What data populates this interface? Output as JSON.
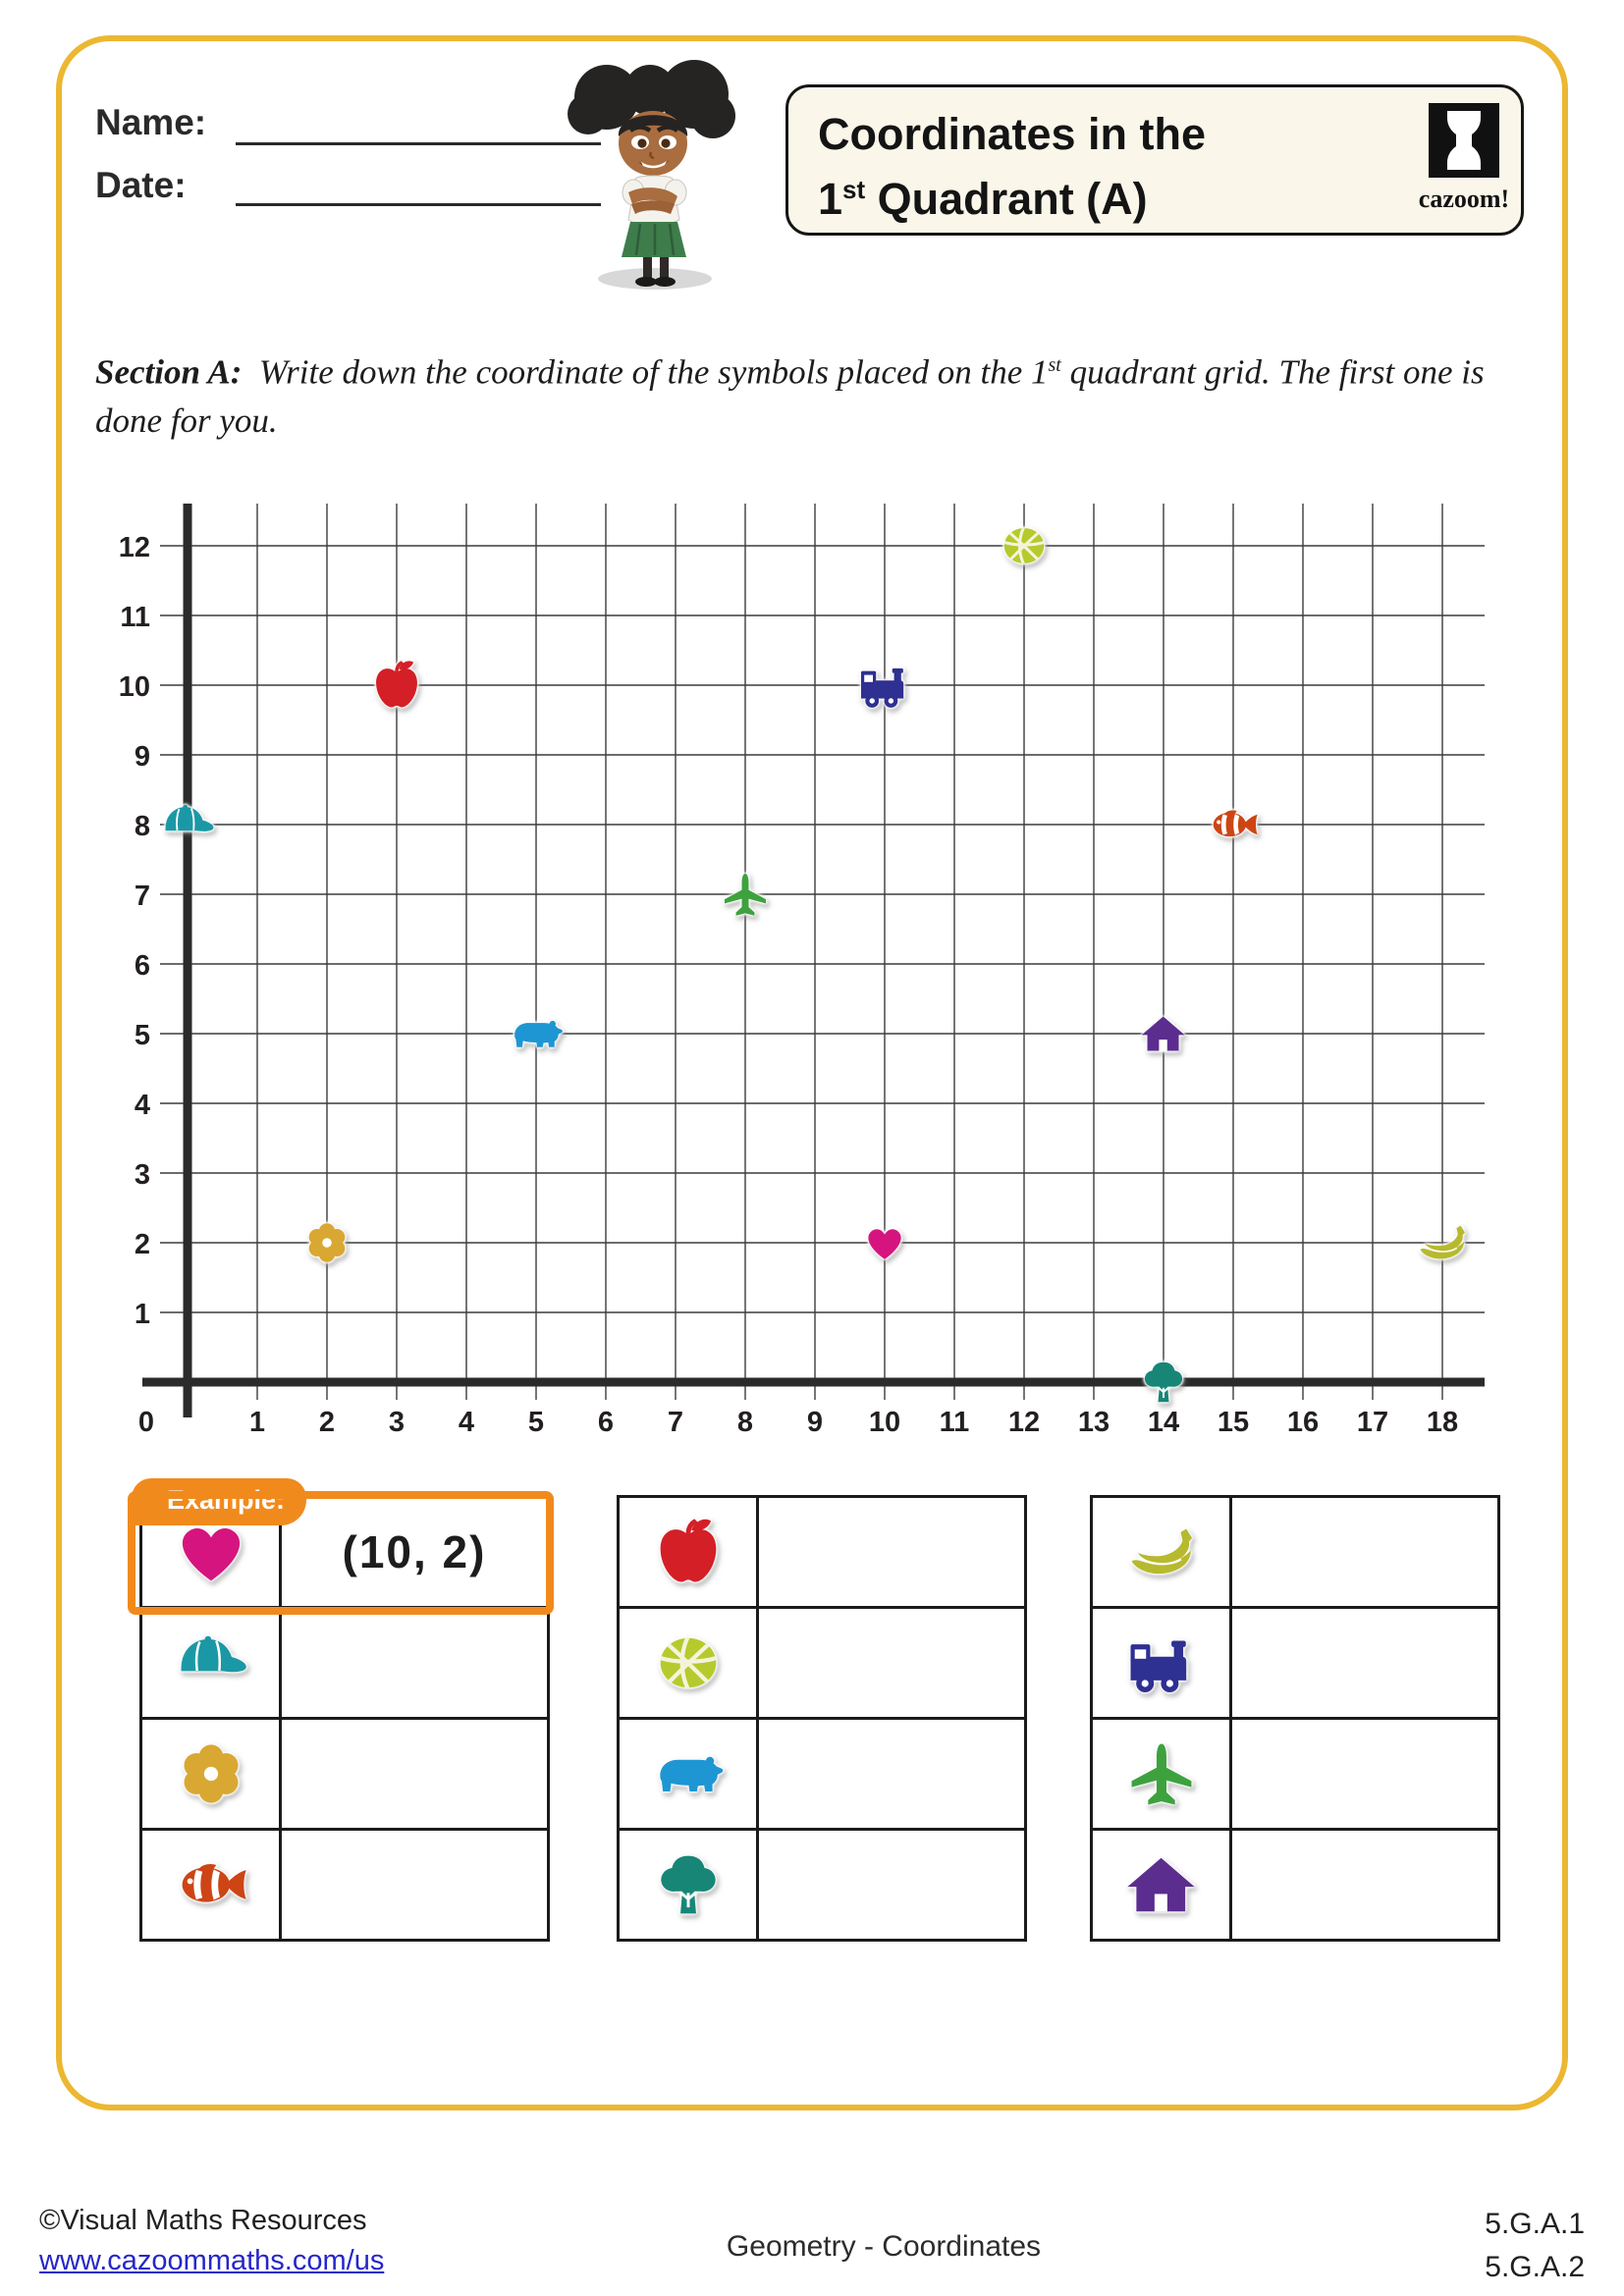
{
  "page": {
    "background": "#ffffff",
    "border_color": "#ecb731"
  },
  "header": {
    "name_label": "Name:",
    "date_label": "Date:",
    "title_line1": "Coordinates in the",
    "title_line2_num": "1",
    "title_line2_sup": "st",
    "title_line2_rest": " Quadrant (A)",
    "logo_text": "cazoom!"
  },
  "section": {
    "label": "Section A:",
    "text_before_sup": "Write down the coordinate of the symbols placed on the 1",
    "sup": "st",
    "text_after_sup": " quadrant grid. The first one is done for you."
  },
  "grid": {
    "x_max": 18,
    "y_max": 12,
    "origin_label": "0",
    "points": [
      {
        "symbol": "basketball",
        "x": 12,
        "y": 12
      },
      {
        "symbol": "apple",
        "x": 3,
        "y": 10
      },
      {
        "symbol": "train",
        "x": 10,
        "y": 10
      },
      {
        "symbol": "cap",
        "x": 0,
        "y": 8
      },
      {
        "symbol": "fish",
        "x": 15,
        "y": 8
      },
      {
        "symbol": "plane",
        "x": 8,
        "y": 7
      },
      {
        "symbol": "bear",
        "x": 5,
        "y": 5
      },
      {
        "symbol": "house",
        "x": 14,
        "y": 5
      },
      {
        "symbol": "flower",
        "x": 2,
        "y": 2
      },
      {
        "symbol": "heart",
        "x": 10,
        "y": 2
      },
      {
        "symbol": "banana",
        "x": 18,
        "y": 2
      },
      {
        "symbol": "tree",
        "x": 14,
        "y": 0
      }
    ]
  },
  "symbols": {
    "heart": {
      "color": "#d6147f"
    },
    "apple": {
      "color": "#d41f26"
    },
    "basketball": {
      "color": "#b6ca2d"
    },
    "train": {
      "color": "#2e3092"
    },
    "cap": {
      "color": "#1b98a5"
    },
    "fish": {
      "color": "#cd4515"
    },
    "plane": {
      "color": "#3da23d"
    },
    "bear": {
      "color": "#1e96d3"
    },
    "house": {
      "color": "#5b2d8e"
    },
    "flower": {
      "color": "#d9a832"
    },
    "banana": {
      "color": "#b7b92f"
    },
    "tree": {
      "color": "#178677"
    }
  },
  "example": {
    "tab_label": "Example:",
    "highlight_color": "#f18a1d"
  },
  "tables": [
    {
      "rows": [
        {
          "symbol": "heart",
          "answer": "(10, 2)",
          "is_example": true
        },
        {
          "symbol": "cap",
          "answer": ""
        },
        {
          "symbol": "flower",
          "answer": ""
        },
        {
          "symbol": "fish",
          "answer": ""
        }
      ]
    },
    {
      "rows": [
        {
          "symbol": "apple",
          "answer": ""
        },
        {
          "symbol": "basketball",
          "answer": ""
        },
        {
          "symbol": "bear",
          "answer": ""
        },
        {
          "symbol": "tree",
          "answer": ""
        }
      ]
    },
    {
      "rows": [
        {
          "symbol": "banana",
          "answer": ""
        },
        {
          "symbol": "train",
          "answer": ""
        },
        {
          "symbol": "plane",
          "answer": ""
        },
        {
          "symbol": "house",
          "answer": ""
        }
      ]
    }
  ],
  "footer": {
    "copyright": "©Visual Maths Resources",
    "link": "www.cazoommaths.com/us",
    "center": "Geometry - Coordinates",
    "standard1": "5.G.A.1",
    "standard2": "5.G.A.2"
  }
}
